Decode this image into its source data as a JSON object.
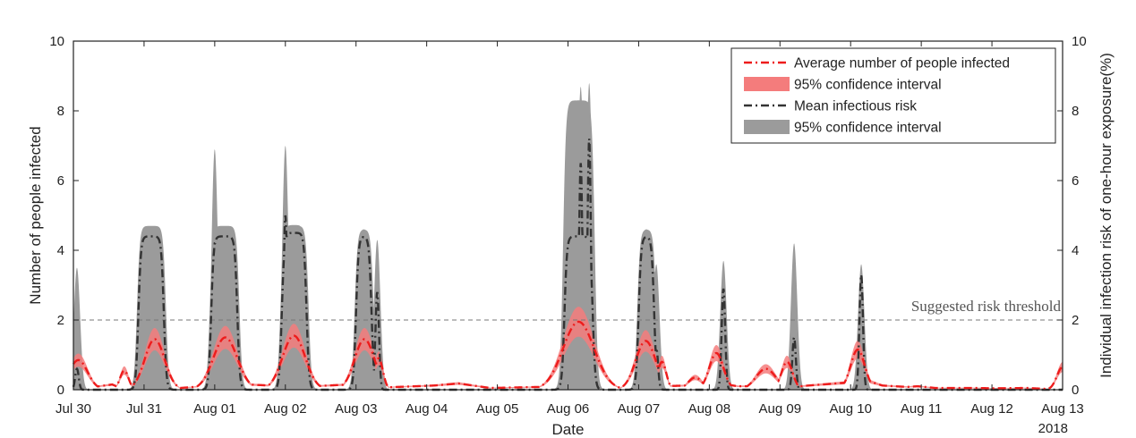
{
  "chart_data": {
    "type": "line",
    "xlabel": "Date",
    "ylabel_left": "Number of people infected",
    "ylabel_right": "Individual infection risk of one-hour exposure(%)",
    "year_label": "2018",
    "x_tick_labels": [
      "Jul 30",
      "Jul 31",
      "Aug 01",
      "Aug 02",
      "Aug 03",
      "Aug 04",
      "Aug 05",
      "Aug 06",
      "Aug 07",
      "Aug 08",
      "Aug 09",
      "Aug 10",
      "Aug 11",
      "Aug 12",
      "Aug 13"
    ],
    "xlim_days": [
      0,
      14
    ],
    "ylim_left": [
      0,
      10
    ],
    "ylim_right": [
      0,
      10
    ],
    "y_ticks_left": [
      "0",
      "2",
      "4",
      "6",
      "8",
      "10"
    ],
    "y_ticks_right": [
      "0",
      "2",
      "4",
      "6",
      "8",
      "10"
    ],
    "threshold": {
      "value": 2,
      "label": "Suggested risk threshold"
    },
    "legend": [
      {
        "label": "Average number of people infected",
        "style": "red-dashdot",
        "color": "#ee1c1c"
      },
      {
        "label": "95% confidence interval",
        "style": "red-band",
        "color": "#f47c7c"
      },
      {
        "label": "Mean infectious risk",
        "style": "dark-dashdot",
        "color": "#333333"
      },
      {
        "label": "95% confidence interval",
        "style": "gray-band",
        "color": "#9b9b9b"
      }
    ],
    "colors": {
      "red_line": "#ee1c1c",
      "red_band": "#f47c7c",
      "dark_line": "#333333",
      "gray_band": "#9b9b9b",
      "threshold": "#777777"
    },
    "series_red": {
      "name": "Average number of people infected",
      "background": [
        [
          0.55,
          0.15
        ],
        [
          0.7,
          0.02
        ],
        [
          1.2,
          0.05
        ],
        [
          1.3,
          0.02
        ],
        [
          1.85,
          0.1
        ],
        [
          1.95,
          0.2
        ],
        [
          3.2,
          0.08
        ],
        [
          3.9,
          0.15
        ],
        [
          4.2,
          0.05
        ],
        [
          5.1,
          0.12
        ],
        [
          5.45,
          0.18
        ],
        [
          5.9,
          0.05
        ],
        [
          6.6,
          0.08
        ],
        [
          8.2,
          0.05
        ],
        [
          8.3,
          0.1
        ],
        [
          9.25,
          0.15
        ],
        [
          9.4,
          0.1
        ],
        [
          10.3,
          0.1
        ],
        [
          10.4,
          0.12
        ],
        [
          11.25,
          0.25
        ],
        [
          11.45,
          0.12
        ],
        [
          11.8,
          0.08
        ],
        [
          11.95,
          0.1
        ],
        [
          12.2,
          0.05
        ],
        [
          12.6,
          0.05
        ],
        [
          12.8,
          0.05
        ],
        [
          13.0,
          0.04
        ],
        [
          13.5,
          0.05
        ]
      ],
      "peaks": [
        {
          "day": 0.07,
          "height": 0.85,
          "width": 0.13
        },
        {
          "day": 0.72,
          "height": 0.55,
          "width": 0.06
        },
        {
          "day": 1.15,
          "height": 1.45,
          "width": 0.14
        },
        {
          "day": 2.15,
          "height": 1.5,
          "width": 0.17
        },
        {
          "day": 3.12,
          "height": 1.55,
          "width": 0.16
        },
        {
          "day": 4.12,
          "height": 1.45,
          "width": 0.14
        },
        {
          "day": 4.32,
          "height": 0.9,
          "width": 0.06
        },
        {
          "day": 7.15,
          "height": 1.95,
          "width": 0.22
        },
        {
          "day": 7.4,
          "height": 0.7,
          "width": 0.05
        },
        {
          "day": 8.1,
          "height": 1.4,
          "width": 0.14
        },
        {
          "day": 8.33,
          "height": 0.8,
          "width": 0.06
        },
        {
          "day": 8.8,
          "height": 0.35,
          "width": 0.1
        },
        {
          "day": 9.1,
          "height": 1.05,
          "width": 0.1
        },
        {
          "day": 9.8,
          "height": 0.6,
          "width": 0.14
        },
        {
          "day": 10.1,
          "height": 0.8,
          "width": 0.08
        },
        {
          "day": 11.1,
          "height": 1.15,
          "width": 0.1
        },
        {
          "day": 14.0,
          "height": 0.65,
          "width": 0.08
        }
      ],
      "band_half_width_fraction": 0.22
    },
    "series_risk": {
      "name": "Mean infectious risk",
      "plateaus": [
        {
          "start": 0.92,
          "end": 1.28,
          "top": 4.4,
          "ci_top": 4.7
        },
        {
          "start": 1.95,
          "end": 2.32,
          "top": 4.4,
          "ci_top": 4.7
        },
        {
          "start": 2.95,
          "end": 3.3,
          "top": 4.5,
          "ci_top": 4.7
        },
        {
          "start": 4.0,
          "end": 4.22,
          "top": 4.4,
          "ci_top": 4.6
        },
        {
          "start": 6.95,
          "end": 7.35,
          "top": 4.4,
          "ci_top": 8.3
        },
        {
          "start": 8.0,
          "end": 8.22,
          "top": 4.4,
          "ci_top": 4.6
        }
      ],
      "spikes": [
        {
          "day": 0.05,
          "height": 0.6,
          "ci_top": 3.5
        },
        {
          "day": 2.0,
          "height": 4.2,
          "ci_top": 6.9
        },
        {
          "day": 3.0,
          "height": 5.0,
          "ci_top": 7.0
        },
        {
          "day": 4.3,
          "height": 2.8,
          "ci_top": 4.3
        },
        {
          "day": 7.18,
          "height": 6.5,
          "ci_top": 8.7
        },
        {
          "day": 7.3,
          "height": 7.2,
          "ci_top": 8.8
        },
        {
          "day": 8.25,
          "height": 1.2,
          "ci_top": 3.6
        },
        {
          "day": 9.2,
          "height": 2.9,
          "ci_top": 3.7
        },
        {
          "day": 10.2,
          "height": 1.5,
          "ci_top": 4.2
        },
        {
          "day": 11.15,
          "height": 3.3,
          "ci_top": 3.6
        }
      ]
    }
  }
}
